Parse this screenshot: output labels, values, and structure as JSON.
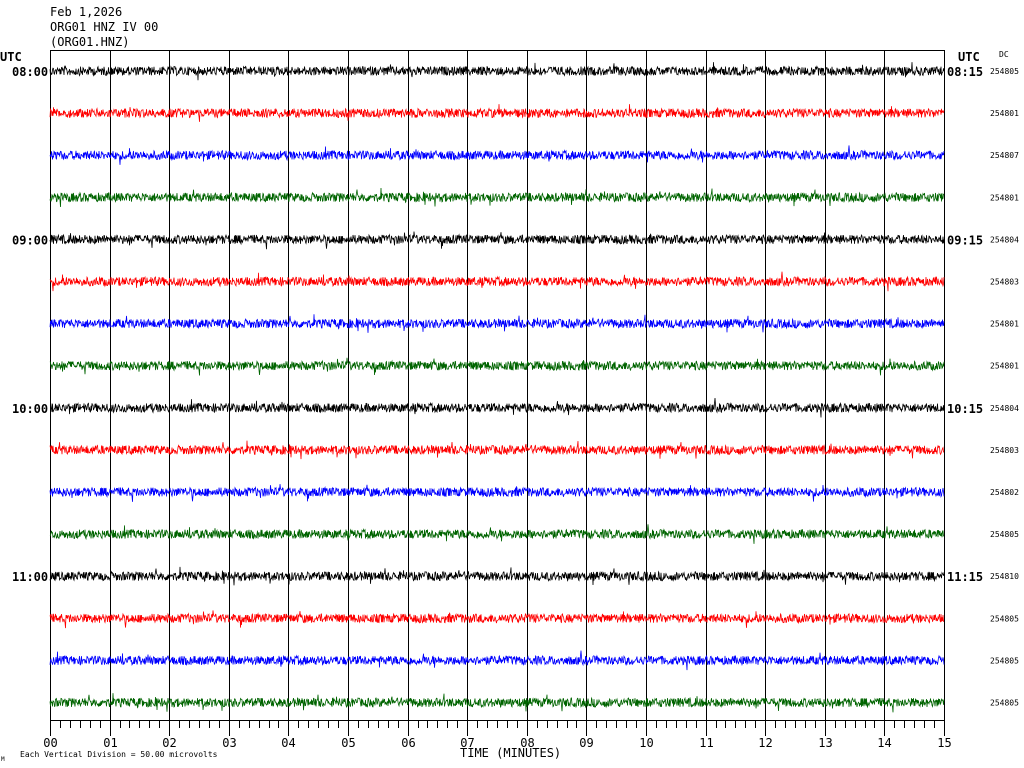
{
  "header": {
    "date": "Feb 1,2026",
    "station": "ORG01 HNZ IV 00",
    "channel": "(ORG01.HNZ)"
  },
  "left_tz": "UTC",
  "right_tz": "UTC",
  "dc_label": "DC",
  "footer": {
    "scale_note": "Each Vertical Division =   50.00 microvolts",
    "corner_mark": "M"
  },
  "chart_data": {
    "type": "line",
    "xlabel": "TIME (MINUTES)",
    "xlim": [
      0,
      15
    ],
    "x_ticks": [
      "00",
      "01",
      "02",
      "03",
      "04",
      "05",
      "06",
      "07",
      "08",
      "09",
      "10",
      "11",
      "12",
      "13",
      "14",
      "15"
    ],
    "trace_colors": [
      "#000000",
      "#ff0000",
      "#0000ff",
      "#006400"
    ],
    "hours": [
      {
        "left": "08:00",
        "right": "08:15"
      },
      {
        "left": "09:00",
        "right": "09:15"
      },
      {
        "left": "10:00",
        "right": "10:15"
      },
      {
        "left": "11:00",
        "right": "11:15"
      }
    ],
    "traces": [
      {
        "dc": "254805"
      },
      {
        "dc": "254801"
      },
      {
        "dc": "254807"
      },
      {
        "dc": "254801"
      },
      {
        "dc": "254804"
      },
      {
        "dc": "254803"
      },
      {
        "dc": "254801"
      },
      {
        "dc": "254801"
      },
      {
        "dc": "254804"
      },
      {
        "dc": "254803"
      },
      {
        "dc": "254802"
      },
      {
        "dc": "254805"
      },
      {
        "dc": "254810"
      },
      {
        "dc": "254805"
      },
      {
        "dc": "254805"
      },
      {
        "dc": "254805"
      }
    ]
  }
}
